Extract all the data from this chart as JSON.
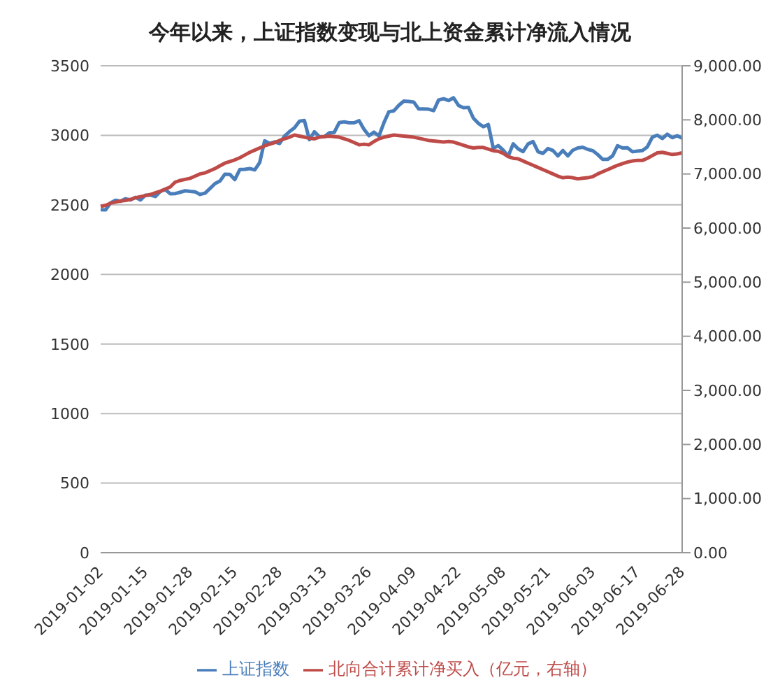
{
  "chart_data": {
    "type": "line",
    "title": "今年以来，上证指数变现与北上资金累计净流入情况",
    "categories": [
      "2019-01-02",
      null,
      null,
      null,
      null,
      null,
      null,
      null,
      null,
      "2019-01-15",
      null,
      null,
      null,
      null,
      null,
      null,
      null,
      null,
      "2019-01-28",
      null,
      null,
      null,
      null,
      null,
      null,
      null,
      null,
      "2019-02-15",
      null,
      null,
      null,
      null,
      null,
      null,
      null,
      null,
      "2019-02-28",
      null,
      null,
      null,
      null,
      null,
      null,
      null,
      null,
      "2019-03-13",
      null,
      null,
      null,
      null,
      null,
      null,
      null,
      null,
      "2019-03-26",
      null,
      null,
      null,
      null,
      null,
      null,
      null,
      null,
      "2019-04-09",
      null,
      null,
      null,
      null,
      null,
      null,
      null,
      null,
      "2019-04-22",
      null,
      null,
      null,
      null,
      null,
      null,
      null,
      null,
      "2019-05-08",
      null,
      null,
      null,
      null,
      null,
      null,
      null,
      null,
      "2019-05-21",
      null,
      null,
      null,
      null,
      null,
      null,
      null,
      null,
      "2019-06-03",
      null,
      null,
      null,
      null,
      null,
      null,
      null,
      null,
      "2019-06-17",
      null,
      null,
      null,
      null,
      null,
      null,
      null,
      null,
      "2019-06-28"
    ],
    "series": [
      {
        "name": "上证指数",
        "color": "#4a7ebb",
        "values": [
          2465,
          2464,
          2515,
          2533,
          2526,
          2544,
          2535,
          2554,
          2535,
          2570,
          2570,
          2560,
          2596,
          2610,
          2580,
          2581,
          2591,
          2601,
          2597,
          2594,
          2575,
          2584,
          2618,
          2653,
          2671,
          2721,
          2719,
          2682,
          2754,
          2756,
          2761,
          2751,
          2804,
          2961,
          2941,
          2953,
          2941,
          2994,
          3027,
          3054,
          3102,
          3106,
          2969,
          3026,
          2991,
          2990,
          3018,
          3021,
          3091,
          3097,
          3090,
          3090,
          3105,
          3043,
          2997,
          3023,
          2995,
          3091,
          3170,
          3176,
          3216,
          3246,
          3244,
          3239,
          3189,
          3189,
          3188,
          3177,
          3254,
          3263,
          3250,
          3270,
          3215,
          3198,
          3201,
          3123,
          3086,
          3062,
          3078,
          2906,
          2926,
          2893,
          2850,
          2939,
          2903,
          2883,
          2938,
          2955,
          2882,
          2870,
          2905,
          2891,
          2852,
          2891,
          2852,
          2893,
          2909,
          2914,
          2899,
          2890,
          2862,
          2827,
          2827,
          2852,
          2925,
          2909,
          2910,
          2882,
          2887,
          2890,
          2917,
          2987,
          3001,
          2977,
          3008,
          2983,
          2997,
          2979
        ]
      },
      {
        "name": "北向合计累计净买入（亿元，右轴）",
        "color": "#be4b48",
        "axis": "y2",
        "values": [
          6400,
          6420,
          6460,
          6480,
          6500,
          6510,
          6530,
          6560,
          6580,
          6600,
          6620,
          6650,
          6680,
          6720,
          6760,
          6850,
          6880,
          6900,
          6920,
          6960,
          7000,
          7020,
          7060,
          7100,
          7150,
          7200,
          7230,
          7260,
          7300,
          7350,
          7400,
          7440,
          7480,
          7520,
          7550,
          7580,
          7620,
          7650,
          7680,
          7720,
          7700,
          7680,
          7660,
          7650,
          7680,
          7690,
          7700,
          7690,
          7680,
          7650,
          7620,
          7580,
          7540,
          7550,
          7540,
          7600,
          7650,
          7680,
          7700,
          7720,
          7710,
          7700,
          7690,
          7680,
          7660,
          7640,
          7620,
          7610,
          7600,
          7590,
          7600,
          7590,
          7560,
          7530,
          7500,
          7480,
          7490,
          7490,
          7460,
          7430,
          7420,
          7380,
          7320,
          7290,
          7280,
          7240,
          7200,
          7160,
          7120,
          7080,
          7040,
          7000,
          6960,
          6930,
          6940,
          6930,
          6910,
          6920,
          6930,
          6950,
          7000,
          7040,
          7080,
          7120,
          7160,
          7190,
          7220,
          7240,
          7250,
          7250,
          7290,
          7340,
          7390,
          7400,
          7380,
          7360,
          7370,
          7390
        ]
      }
    ],
    "ylim": [
      0,
      3500
    ],
    "yticks": [
      0,
      500,
      1000,
      1500,
      2000,
      2500,
      3000,
      3500
    ],
    "y2lim": [
      0,
      9000
    ],
    "y2ticks": [
      {
        "value": 0,
        "label": "0.00"
      },
      {
        "value": 1000,
        "label": "1,000.00"
      },
      {
        "value": 2000,
        "label": "2,000.00"
      },
      {
        "value": 3000,
        "label": "3,000.00"
      },
      {
        "value": 4000,
        "label": "4,000.00"
      },
      {
        "value": 5000,
        "label": "5,000.00"
      },
      {
        "value": 6000,
        "label": "6,000.00"
      },
      {
        "value": 7000,
        "label": "7,000.00"
      },
      {
        "value": 8000,
        "label": "8,000.00"
      },
      {
        "value": 9000,
        "label": "9,000.00"
      }
    ],
    "grid": "y",
    "legend": "bottom"
  }
}
